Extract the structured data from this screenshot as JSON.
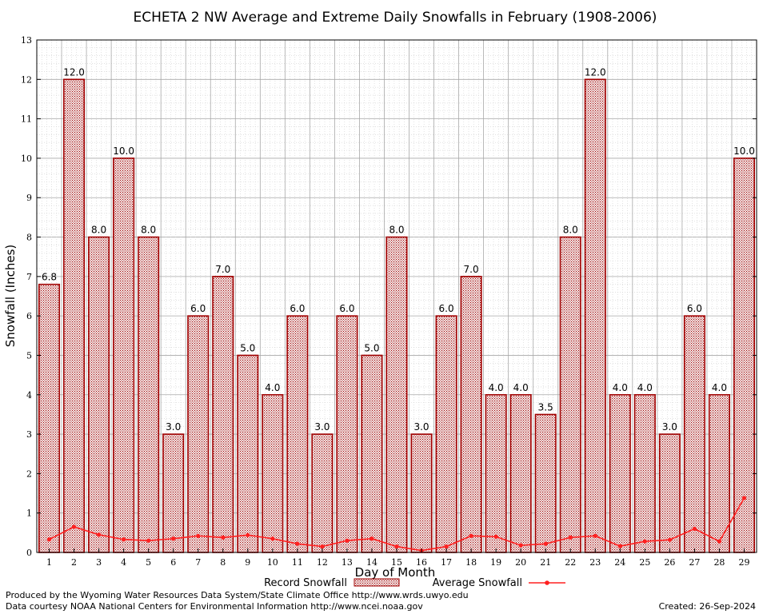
{
  "chart_data": {
    "type": "bar",
    "title": "ECHETA 2 NW Average and Extreme Daily Snowfalls in February (1908-2006)",
    "xlabel": "Day of Month",
    "ylabel": "Snowfall (Inches)",
    "ylim": [
      0,
      13
    ],
    "yticks": [
      "0",
      "1",
      "2",
      "3",
      "4",
      "5",
      "6",
      "7",
      "8",
      "9",
      "10",
      "11",
      "12",
      "13"
    ],
    "grid": true,
    "legend_position": "bottom",
    "categories": [
      "1",
      "2",
      "3",
      "4",
      "5",
      "6",
      "7",
      "8",
      "9",
      "10",
      "11",
      "12",
      "13",
      "14",
      "15",
      "16",
      "17",
      "18",
      "19",
      "20",
      "21",
      "22",
      "23",
      "24",
      "25",
      "26",
      "27",
      "28",
      "29"
    ],
    "series": [
      {
        "name": "Record Snowfall",
        "kind": "bar",
        "color": "#a00000",
        "values": [
          6.8,
          12.0,
          8.0,
          10.0,
          8.0,
          3.0,
          6.0,
          7.0,
          5.0,
          4.0,
          6.0,
          3.0,
          6.0,
          5.0,
          8.0,
          3.0,
          6.0,
          7.0,
          4.0,
          4.0,
          3.5,
          8.0,
          12.0,
          4.0,
          4.0,
          3.0,
          6.0,
          4.0,
          10.0
        ],
        "labels": [
          "6.8",
          "12.0",
          "8.0",
          "10.0",
          "8.0",
          "3.0",
          "6.0",
          "7.0",
          "5.0",
          "4.0",
          "6.0",
          "3.0",
          "6.0",
          "5.0",
          "8.0",
          "3.0",
          "6.0",
          "7.0",
          "4.0",
          "4.0",
          "3.5",
          "8.0",
          "12.0",
          "4.0",
          "4.0",
          "3.0",
          "6.0",
          "4.0",
          "10.0"
        ]
      },
      {
        "name": "Average Snowfall",
        "kind": "line",
        "color": "#ff2020",
        "values": [
          0.33,
          0.65,
          0.45,
          0.33,
          0.3,
          0.35,
          0.42,
          0.38,
          0.44,
          0.35,
          0.22,
          0.15,
          0.3,
          0.35,
          0.15,
          0.05,
          0.15,
          0.42,
          0.4,
          0.18,
          0.22,
          0.38,
          0.42,
          0.16,
          0.28,
          0.32,
          0.6,
          0.28,
          1.38
        ]
      }
    ]
  },
  "footer": {
    "credit_line1": "Produced by the Wyoming Water Resources Data System/State Climate Office http://www.wrds.uwyo.edu",
    "credit_line2": "Data courtesy NOAA National Centers for Environmental Information http://www.ncei.noaa.gov",
    "created": "Created:  26-Sep-2024"
  }
}
